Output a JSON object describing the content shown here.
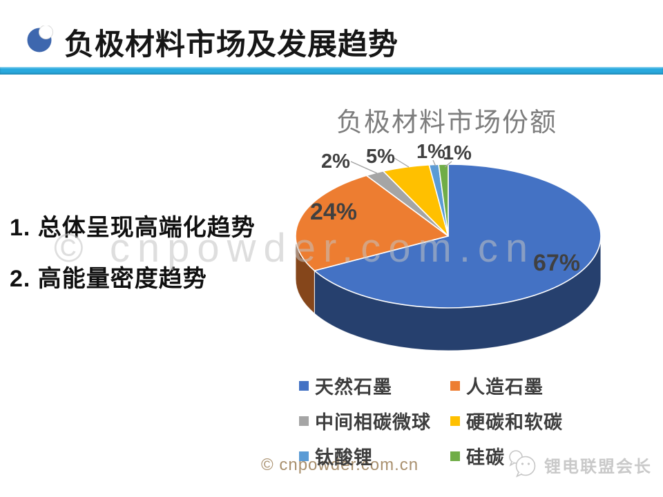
{
  "slide": {
    "title": "负极材料市场及发展趋势",
    "accent_bar_color": "#29A9DE",
    "bullet_icon_color": "#3E67AE",
    "points": [
      "1. 总体呈现高端化趋势",
      "2. 高能量密度趋势"
    ],
    "watermark_center": "© cnpowder.com.cn",
    "footer_watermark": "© cnpowder.com.cn",
    "footer_watermark_color": "#a9906e",
    "brand_badge": "锂电联盟会长",
    "brand_color": "#c9c9c9"
  },
  "chart_data": {
    "type": "pie",
    "style": "3d",
    "title": "负极材料市场份额",
    "unit": "%",
    "legend_position": "bottom",
    "start_angle_deg": 0,
    "direction": "clockwise",
    "series": [
      {
        "name": "天然石墨",
        "value": 67,
        "color": "#4472C4"
      },
      {
        "name": "人造石墨",
        "value": 24,
        "color": "#ED7D31"
      },
      {
        "name": "中间相碳微球",
        "value": 2,
        "color": "#A5A5A5"
      },
      {
        "name": "硬碳和软碳",
        "value": 5,
        "color": "#FFC000"
      },
      {
        "name": "钛酸锂",
        "value": 1,
        "color": "#5B9BD5"
      },
      {
        "name": "硅碳",
        "value": 1,
        "color": "#70AD47"
      }
    ],
    "labels": [
      "67%",
      "24%",
      "2%",
      "5%",
      "1%",
      "1%"
    ]
  }
}
